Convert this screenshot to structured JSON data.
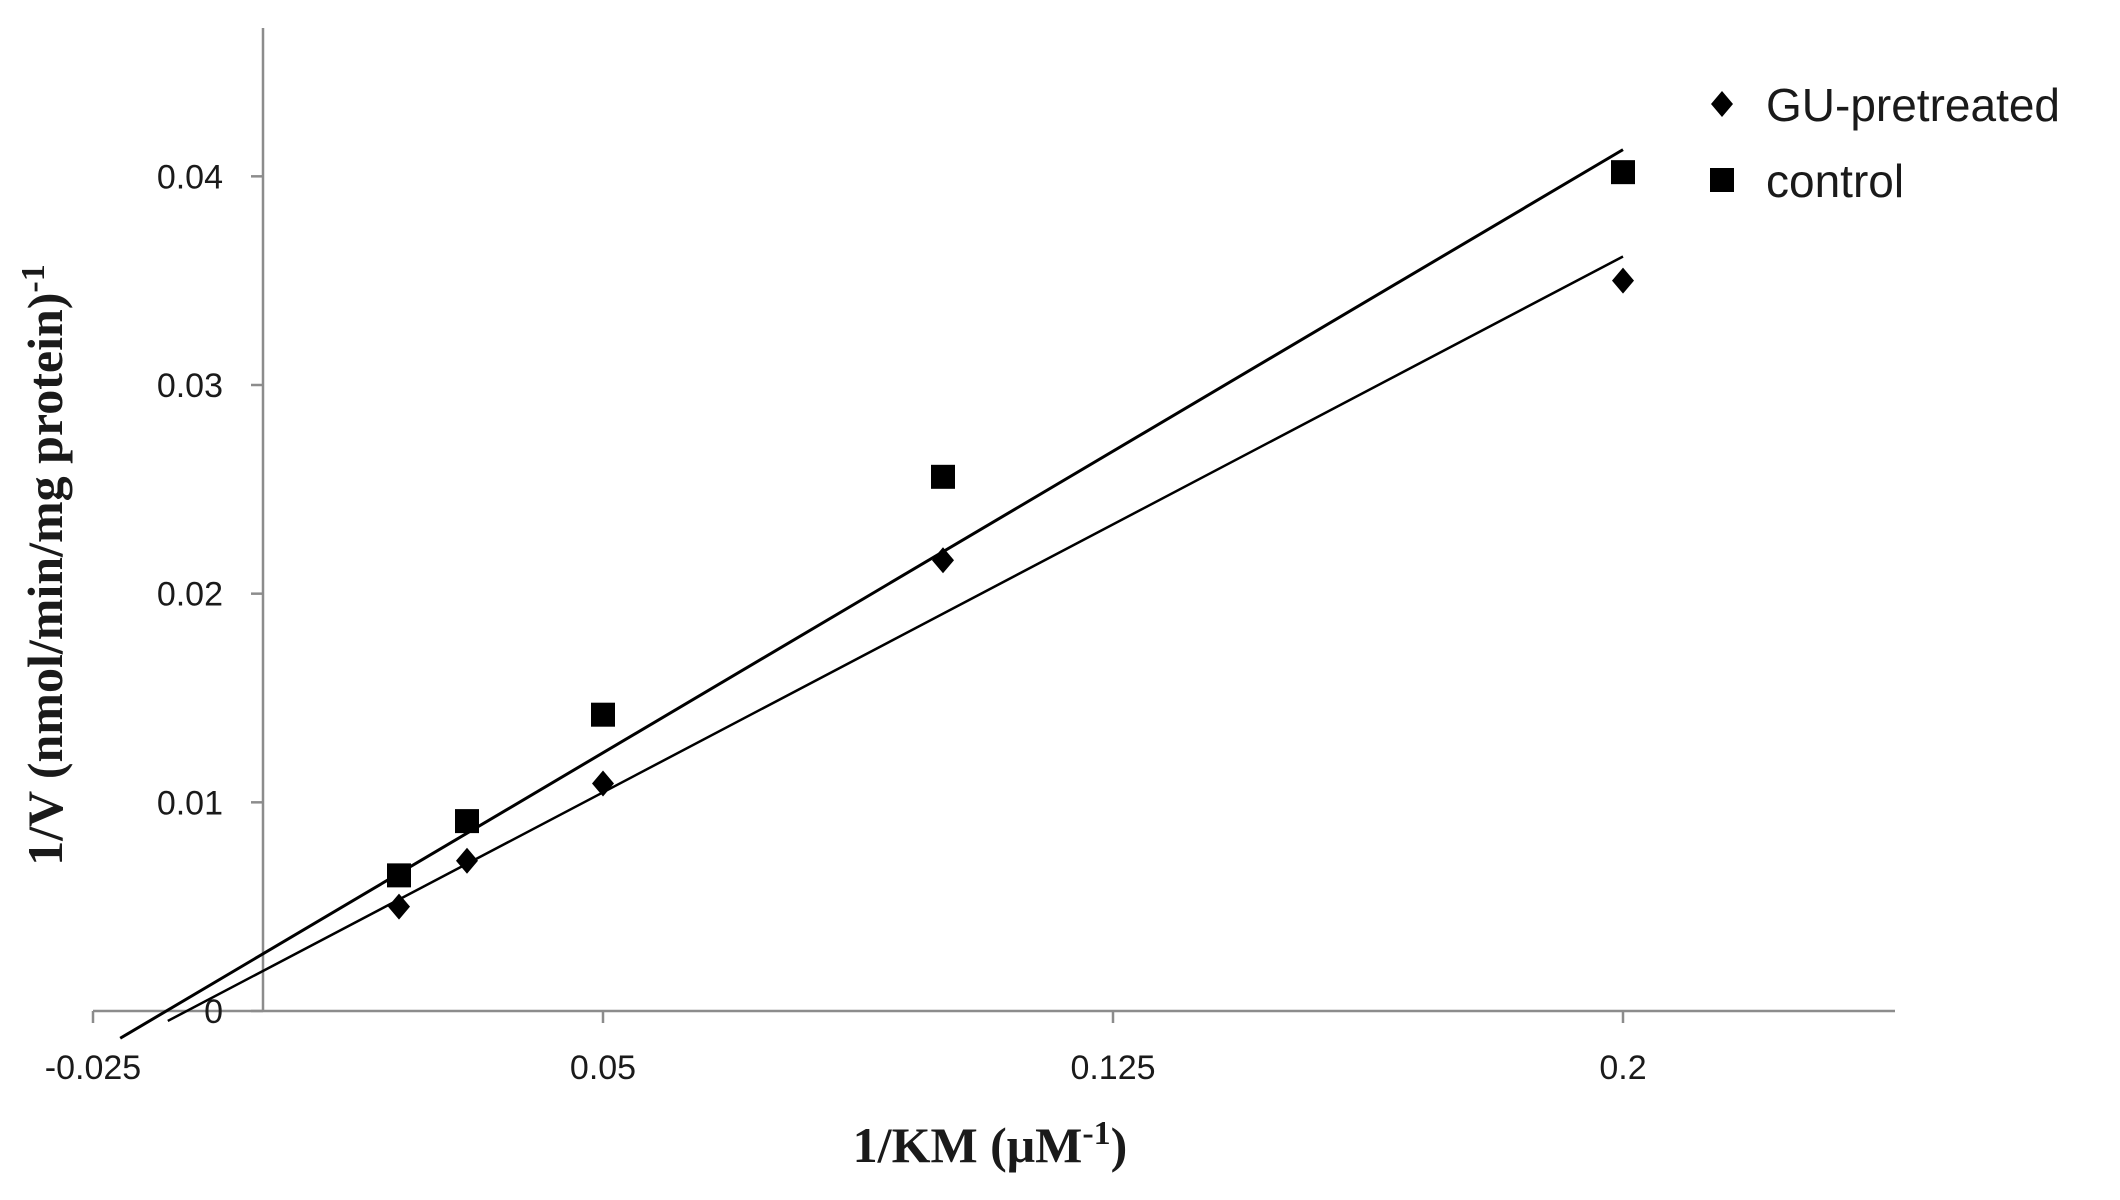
{
  "chart_data": {
    "type": "scatter",
    "title": "",
    "xlabel": "1/KM (μM",
    "xlabel_sup": "-1",
    "xlabel_tail": ")",
    "ylabel": "1/V (nmol/min/mg protein)",
    "ylabel_sup": "-1",
    "xlim": [
      -0.025,
      0.24
    ],
    "ylim": [
      0,
      0.045
    ],
    "x_ticks": [
      -0.025,
      0.05,
      0.125,
      0.2
    ],
    "x_tick_labels": [
      "-0.025",
      "0.05",
      "0.125",
      "0.2"
    ],
    "y_ticks": [
      0,
      0.01,
      0.02,
      0.03,
      0.04
    ],
    "y_tick_labels": [
      "0",
      "0.01",
      "0.02",
      "0.03",
      "0.04"
    ],
    "y_axis_at_x": 0,
    "grid": false,
    "legend_position": "top-right",
    "series": [
      {
        "name": "GU-pretreated",
        "marker": "diamond",
        "color": "#000000",
        "points": [
          {
            "x": 0.02,
            "y": 0.005
          },
          {
            "x": 0.03,
            "y": 0.0072
          },
          {
            "x": 0.05,
            "y": 0.0109
          },
          {
            "x": 0.1,
            "y": 0.0216
          },
          {
            "x": 0.2,
            "y": 0.035
          }
        ],
        "trendline": {
          "slope": 0.1712,
          "intercept": 0.00192,
          "x_start": -0.014,
          "x_end": 0.2
        }
      },
      {
        "name": "control",
        "marker": "square",
        "color": "#000000",
        "points": [
          {
            "x": 0.02,
            "y": 0.0065
          },
          {
            "x": 0.03,
            "y": 0.0091
          },
          {
            "x": 0.05,
            "y": 0.0142
          },
          {
            "x": 0.1,
            "y": 0.0256
          },
          {
            "x": 0.2,
            "y": 0.0402
          }
        ],
        "trendline": {
          "slope": 0.1927,
          "intercept": 0.00274,
          "x_start": -0.021,
          "x_end": 0.2
        }
      }
    ]
  }
}
